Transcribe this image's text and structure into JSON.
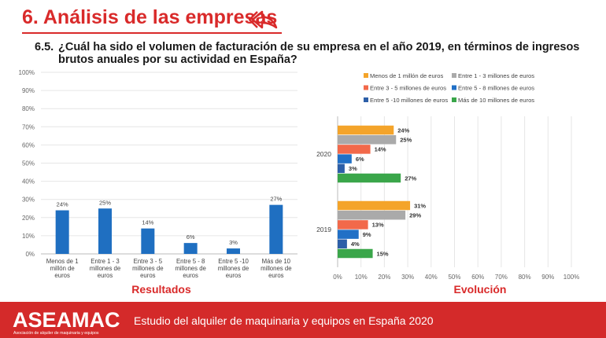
{
  "header": {
    "section_title": "6. Análisis de las empresas",
    "question_number": "6.5.",
    "question_text": "¿Cuál ha sido el volumen de facturación de su empresa en el año 2019, en términos de ingresos brutos anuales por su actividad en España?",
    "back_icon": "back-arrow-icon"
  },
  "footer": {
    "logo_text": "ASEAMAC",
    "logo_subtitle": "Asociación de alquiler de maquinaria y equipos",
    "title": "Estudio del alquiler de maquinaria y equipos en España 2020",
    "background_color": "#d42a2a"
  },
  "chart_data": [
    {
      "type": "bar",
      "title": "Resultados",
      "categories": [
        "Menos de 1 millón de euros",
        "Entre 1 - 3 millones de euros",
        "Entre 3 - 5 millones de euros",
        "Entre 5 - 8 millones de euros",
        "Entre 5 -10 millones de euros",
        "Más de 10 millones de euros"
      ],
      "category_lines": [
        [
          "Menos de 1",
          "millón de",
          "euros"
        ],
        [
          "Entre 1 - 3",
          "millones de",
          "euros"
        ],
        [
          "Entre 3 - 5",
          "millones de",
          "euros"
        ],
        [
          "Entre 5 - 8",
          "millones de",
          "euros"
        ],
        [
          "Entre 5 -10",
          "millones de",
          "euros"
        ],
        [
          "Más de 10",
          "millones de",
          "euros"
        ]
      ],
      "values": [
        24,
        25,
        14,
        6,
        3,
        27
      ],
      "data_labels": [
        "24%",
        "25%",
        "14%",
        "6%",
        "3%",
        "27%"
      ],
      "ylim": [
        0,
        100
      ],
      "y_ticks": [
        "0%",
        "10%",
        "20%",
        "30%",
        "40%",
        "50%",
        "60%",
        "70%",
        "80%",
        "90%",
        "100%"
      ],
      "color": "#1f6fc1",
      "grid": true
    },
    {
      "type": "bar",
      "orientation": "horizontal",
      "title": "Evolución",
      "categories": [
        "2020",
        "2019"
      ],
      "series": [
        {
          "name": "Menos de 1 millón de euros",
          "color": "#f4a42a",
          "values": [
            24,
            31
          ],
          "labels": [
            "24%",
            "31%"
          ]
        },
        {
          "name": "Entre 1 - 3 millones de euros",
          "color": "#aaaaaa",
          "values": [
            25,
            29
          ],
          "labels": [
            "25%",
            "29%"
          ]
        },
        {
          "name": "Entre 3 - 5 millones de euros",
          "color": "#f2694a",
          "values": [
            14,
            13
          ],
          "labels": [
            "14%",
            "13%"
          ]
        },
        {
          "name": "Entre 5 - 8 millones de euros",
          "color": "#2170c6",
          "values": [
            6,
            9
          ],
          "labels": [
            "6%",
            "9%"
          ]
        },
        {
          "name": "Entre 5 -10 millones de euros",
          "color": "#2d5fa8",
          "values": [
            3,
            4
          ],
          "labels": [
            "3%",
            "4%"
          ]
        },
        {
          "name": "Más de 10 millones de euros",
          "color": "#3aa64a",
          "values": [
            27,
            15
          ],
          "labels": [
            "27%",
            "15%"
          ]
        }
      ],
      "xlim": [
        0,
        100
      ],
      "x_ticks": [
        "0%",
        "10%",
        "20%",
        "30%",
        "40%",
        "50%",
        "60%",
        "70%",
        "80%",
        "90%",
        "100%"
      ],
      "legend_position": "top",
      "grid": true
    }
  ]
}
